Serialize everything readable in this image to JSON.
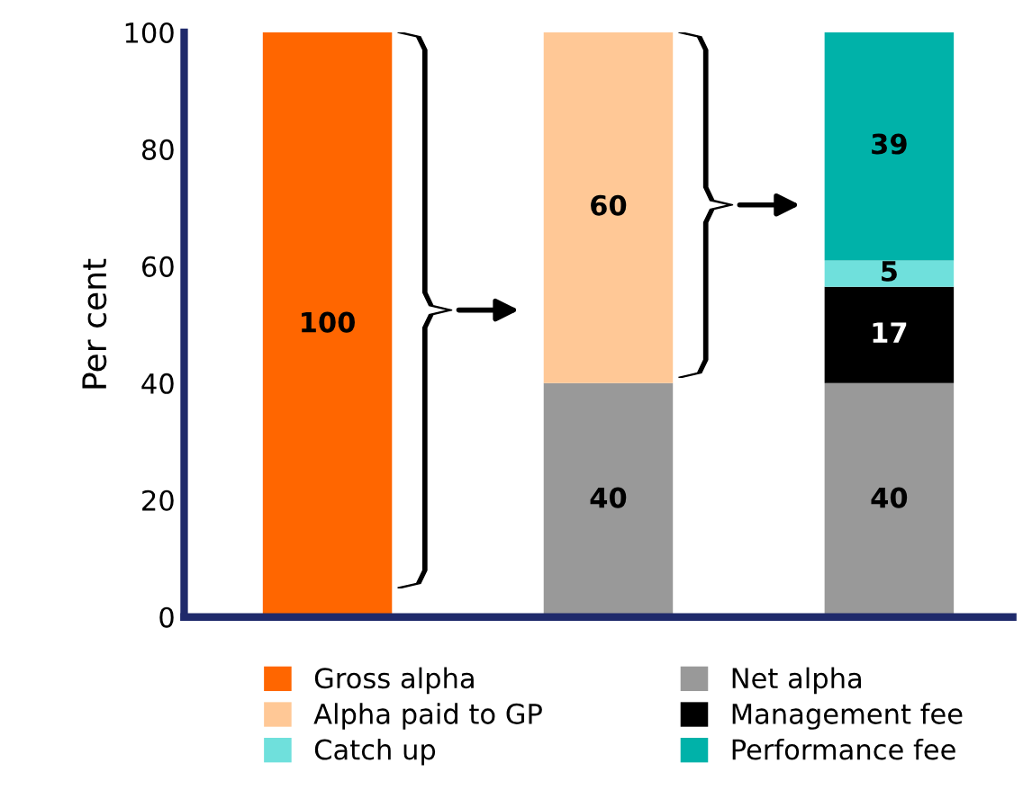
{
  "chart_data": {
    "type": "bar",
    "stacked": true,
    "ylabel": "Per cent",
    "categories": [
      null,
      null,
      null
    ],
    "series": [
      {
        "name": "Gross alpha",
        "color": "#ff6600",
        "values": [
          100,
          null,
          null
        ],
        "value_labels": [
          "100",
          null,
          null
        ]
      },
      {
        "name": "Net alpha",
        "color": "#999999",
        "values": [
          null,
          40,
          40
        ],
        "value_labels": [
          null,
          "40",
          "40"
        ]
      },
      {
        "name": "Alpha paid to GP",
        "color": "#ffc896",
        "values": [
          null,
          60,
          null
        ],
        "value_labels": [
          null,
          "60",
          null
        ]
      },
      {
        "name": "Management fee",
        "color": "#000000",
        "values": [
          null,
          null,
          16.5
        ],
        "value_labels": [
          null,
          null,
          "17"
        ]
      },
      {
        "name": "Catch up",
        "color": "#6fe0dc",
        "values": [
          null,
          null,
          4.5
        ],
        "value_labels": [
          null,
          null,
          "5"
        ]
      },
      {
        "name": "Performance fee",
        "color": "#00b2a9",
        "values": [
          null,
          null,
          39
        ],
        "value_labels": [
          null,
          null,
          "39"
        ]
      }
    ],
    "ylim": [
      0,
      100
    ],
    "yticks": [
      0,
      20,
      40,
      60,
      80,
      100
    ],
    "grid": false,
    "legend": "bottom"
  }
}
